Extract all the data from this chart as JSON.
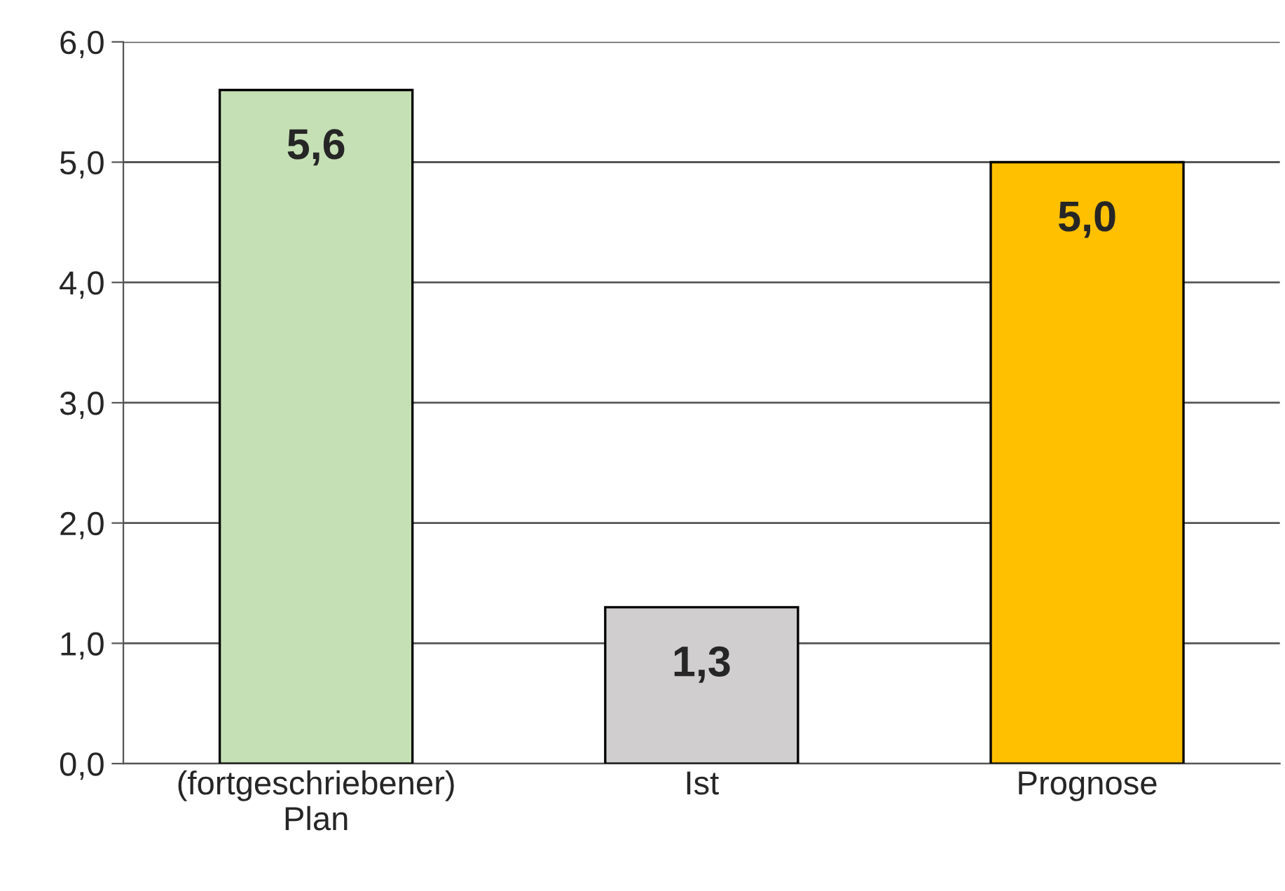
{
  "chart_data": {
    "type": "bar",
    "categories": [
      "(fortgeschriebener)\nPlan",
      "Ist",
      "Prognose"
    ],
    "values": [
      5.6,
      1.3,
      5.0
    ],
    "colors": [
      "#c5e0b4",
      "#d0cece",
      "#ffc000"
    ],
    "value_labels": [
      "5,6",
      "1,3",
      "5,0"
    ],
    "ylim": [
      0,
      6
    ],
    "yticks": [
      {
        "value": 0,
        "label": "0,0"
      },
      {
        "value": 1,
        "label": "1,0"
      },
      {
        "value": 2,
        "label": "2,0"
      },
      {
        "value": 3,
        "label": "3,0"
      },
      {
        "value": 4,
        "label": "4,0"
      },
      {
        "value": 5,
        "label": "5,0"
      },
      {
        "value": 6,
        "label": "6,0"
      }
    ],
    "grid": "y",
    "legend": false
  }
}
